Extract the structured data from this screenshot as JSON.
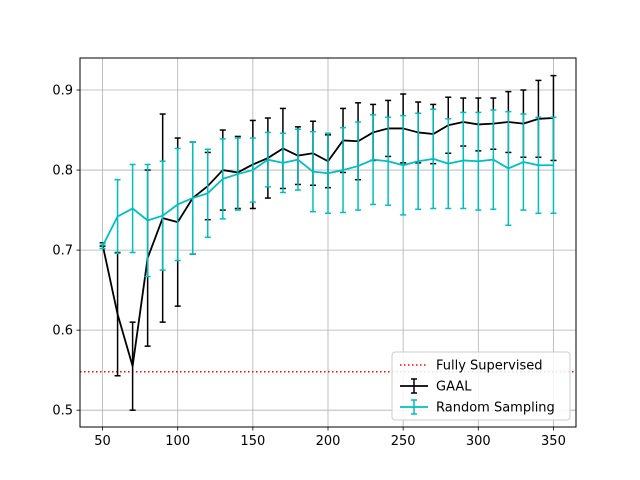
{
  "chart_data": {
    "type": "line",
    "title": "",
    "xlabel": "",
    "ylabel": "",
    "xlim": [
      35,
      365
    ],
    "ylim": [
      0.479,
      0.94
    ],
    "xticks": [
      50,
      100,
      150,
      200,
      250,
      300,
      350
    ],
    "yticks": [
      0.5,
      0.6,
      0.7,
      0.8,
      0.9
    ],
    "grid": true,
    "legend": "lower-right",
    "x": [
      50,
      60,
      70,
      80,
      90,
      100,
      110,
      120,
      130,
      140,
      150,
      160,
      170,
      180,
      190,
      200,
      210,
      220,
      230,
      240,
      250,
      260,
      270,
      280,
      290,
      300,
      310,
      320,
      330,
      340,
      350
    ],
    "series": [
      {
        "name": "GAAL",
        "color": "#000000",
        "values": [
          0.707,
          0.62,
          0.555,
          0.69,
          0.74,
          0.735,
          0.765,
          0.78,
          0.8,
          0.797,
          0.807,
          0.815,
          0.827,
          0.818,
          0.821,
          0.811,
          0.837,
          0.836,
          0.847,
          0.852,
          0.852,
          0.847,
          0.845,
          0.856,
          0.86,
          0.857,
          0.858,
          0.86,
          0.858,
          0.864,
          0.865
        ],
        "errors": [
          0.002,
          0.077,
          0.055,
          0.11,
          0.13,
          0.105,
          0.07,
          0.042,
          0.05,
          0.045,
          0.055,
          0.05,
          0.05,
          0.036,
          0.04,
          0.033,
          0.04,
          0.048,
          0.035,
          0.035,
          0.043,
          0.038,
          0.037,
          0.035,
          0.03,
          0.033,
          0.032,
          0.038,
          0.042,
          0.048,
          0.053
        ]
      },
      {
        "name": "Random Sampling",
        "color": "#00bfbf",
        "values": [
          0.705,
          0.742,
          0.752,
          0.737,
          0.743,
          0.757,
          0.765,
          0.771,
          0.789,
          0.795,
          0.8,
          0.813,
          0.809,
          0.813,
          0.798,
          0.796,
          0.8,
          0.805,
          0.813,
          0.811,
          0.806,
          0.811,
          0.814,
          0.808,
          0.812,
          0.811,
          0.813,
          0.802,
          0.81,
          0.806,
          0.806
        ],
        "errors": [
          0.003,
          0.046,
          0.055,
          0.07,
          0.068,
          0.07,
          0.07,
          0.055,
          0.05,
          0.045,
          0.04,
          0.034,
          0.037,
          0.038,
          0.05,
          0.05,
          0.053,
          0.055,
          0.056,
          0.055,
          0.062,
          0.06,
          0.062,
          0.056,
          0.06,
          0.061,
          0.062,
          0.071,
          0.06,
          0.06,
          0.06
        ]
      }
    ],
    "reference_line": {
      "name": "Fully Supervised",
      "y": 0.548,
      "color": "#ff0000",
      "style": "dotted"
    }
  }
}
